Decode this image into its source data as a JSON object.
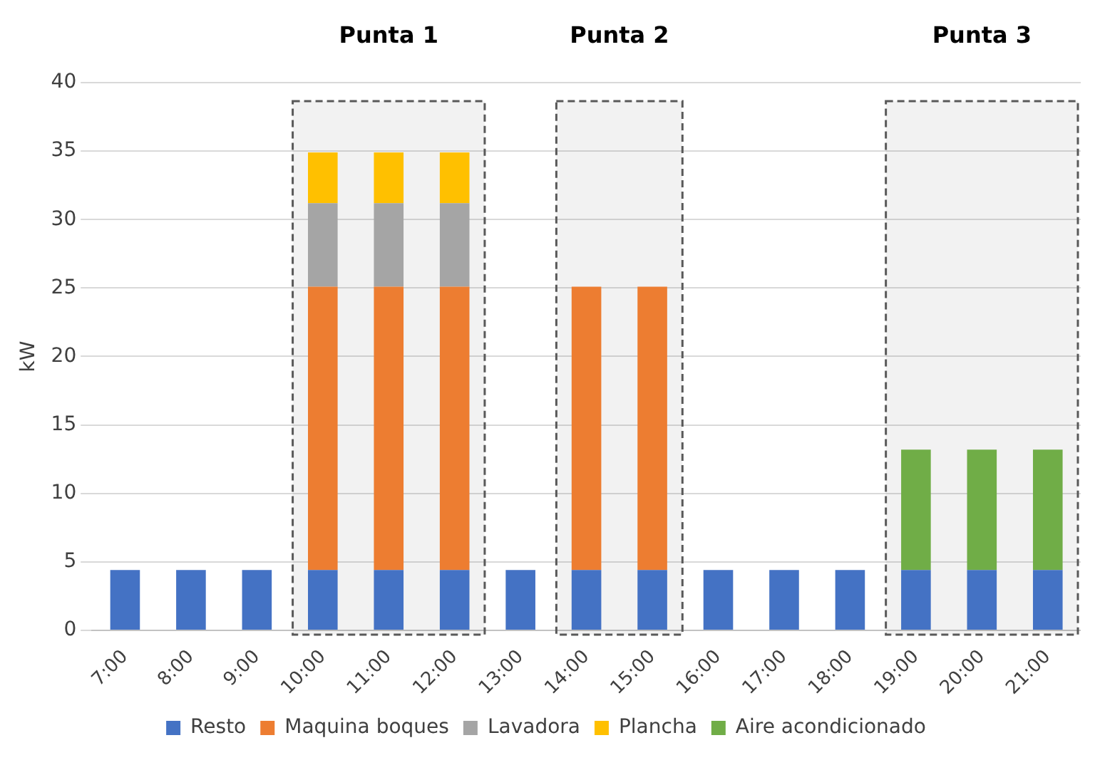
{
  "chart_data": {
    "type": "bar",
    "ylabel": "kW",
    "stacked": true,
    "categories": [
      "7:00",
      "8:00",
      "9:00",
      "10:00",
      "11:00",
      "12:00",
      "13:00",
      "14:00",
      "15:00",
      "16:00",
      "17:00",
      "18:00",
      "19:00",
      "20:00",
      "21:00"
    ],
    "series": [
      {
        "name": "Resto",
        "color": "#4472c4",
        "values": [
          4.4,
          4.4,
          4.4,
          4.4,
          4.4,
          4.4,
          4.4,
          4.4,
          4.4,
          4.4,
          4.4,
          4.4,
          4.4,
          4.4,
          4.4
        ]
      },
      {
        "name": "Maquina boques",
        "color": "#ed7d31",
        "values": [
          null,
          null,
          null,
          20.7,
          20.7,
          20.7,
          null,
          20.7,
          20.7,
          null,
          null,
          null,
          null,
          null,
          null
        ]
      },
      {
        "name": "Lavadora",
        "color": "#a5a5a5",
        "values": [
          null,
          null,
          null,
          6.1,
          6.1,
          6.1,
          null,
          null,
          null,
          null,
          null,
          null,
          null,
          null,
          null
        ]
      },
      {
        "name": "Plancha",
        "color": "#ffc000",
        "values": [
          null,
          null,
          null,
          3.7,
          3.7,
          3.7,
          null,
          null,
          null,
          null,
          null,
          null,
          null,
          null,
          null
        ]
      },
      {
        "name": "Aire acondicionado",
        "color": "#70ad47",
        "values": [
          null,
          null,
          null,
          null,
          null,
          null,
          null,
          null,
          null,
          null,
          null,
          null,
          8.8,
          8.8,
          8.8
        ]
      }
    ],
    "ylim": [
      0,
      40
    ],
    "yticks": [
      0,
      5,
      10,
      15,
      20,
      25,
      30,
      35,
      40
    ],
    "grid": "y",
    "legend": "bottom",
    "bands": [
      {
        "axis": "x",
        "from": "10:00",
        "to": "12:00",
        "label": "Punta 1",
        "color": "#595959"
      },
      {
        "axis": "x",
        "from": "14:00",
        "to": "15:00",
        "label": "Punta 2",
        "color": "#595959"
      },
      {
        "axis": "x",
        "from": "19:00",
        "to": "21:00",
        "label": "Punta 3",
        "color": "#595959"
      }
    ]
  }
}
